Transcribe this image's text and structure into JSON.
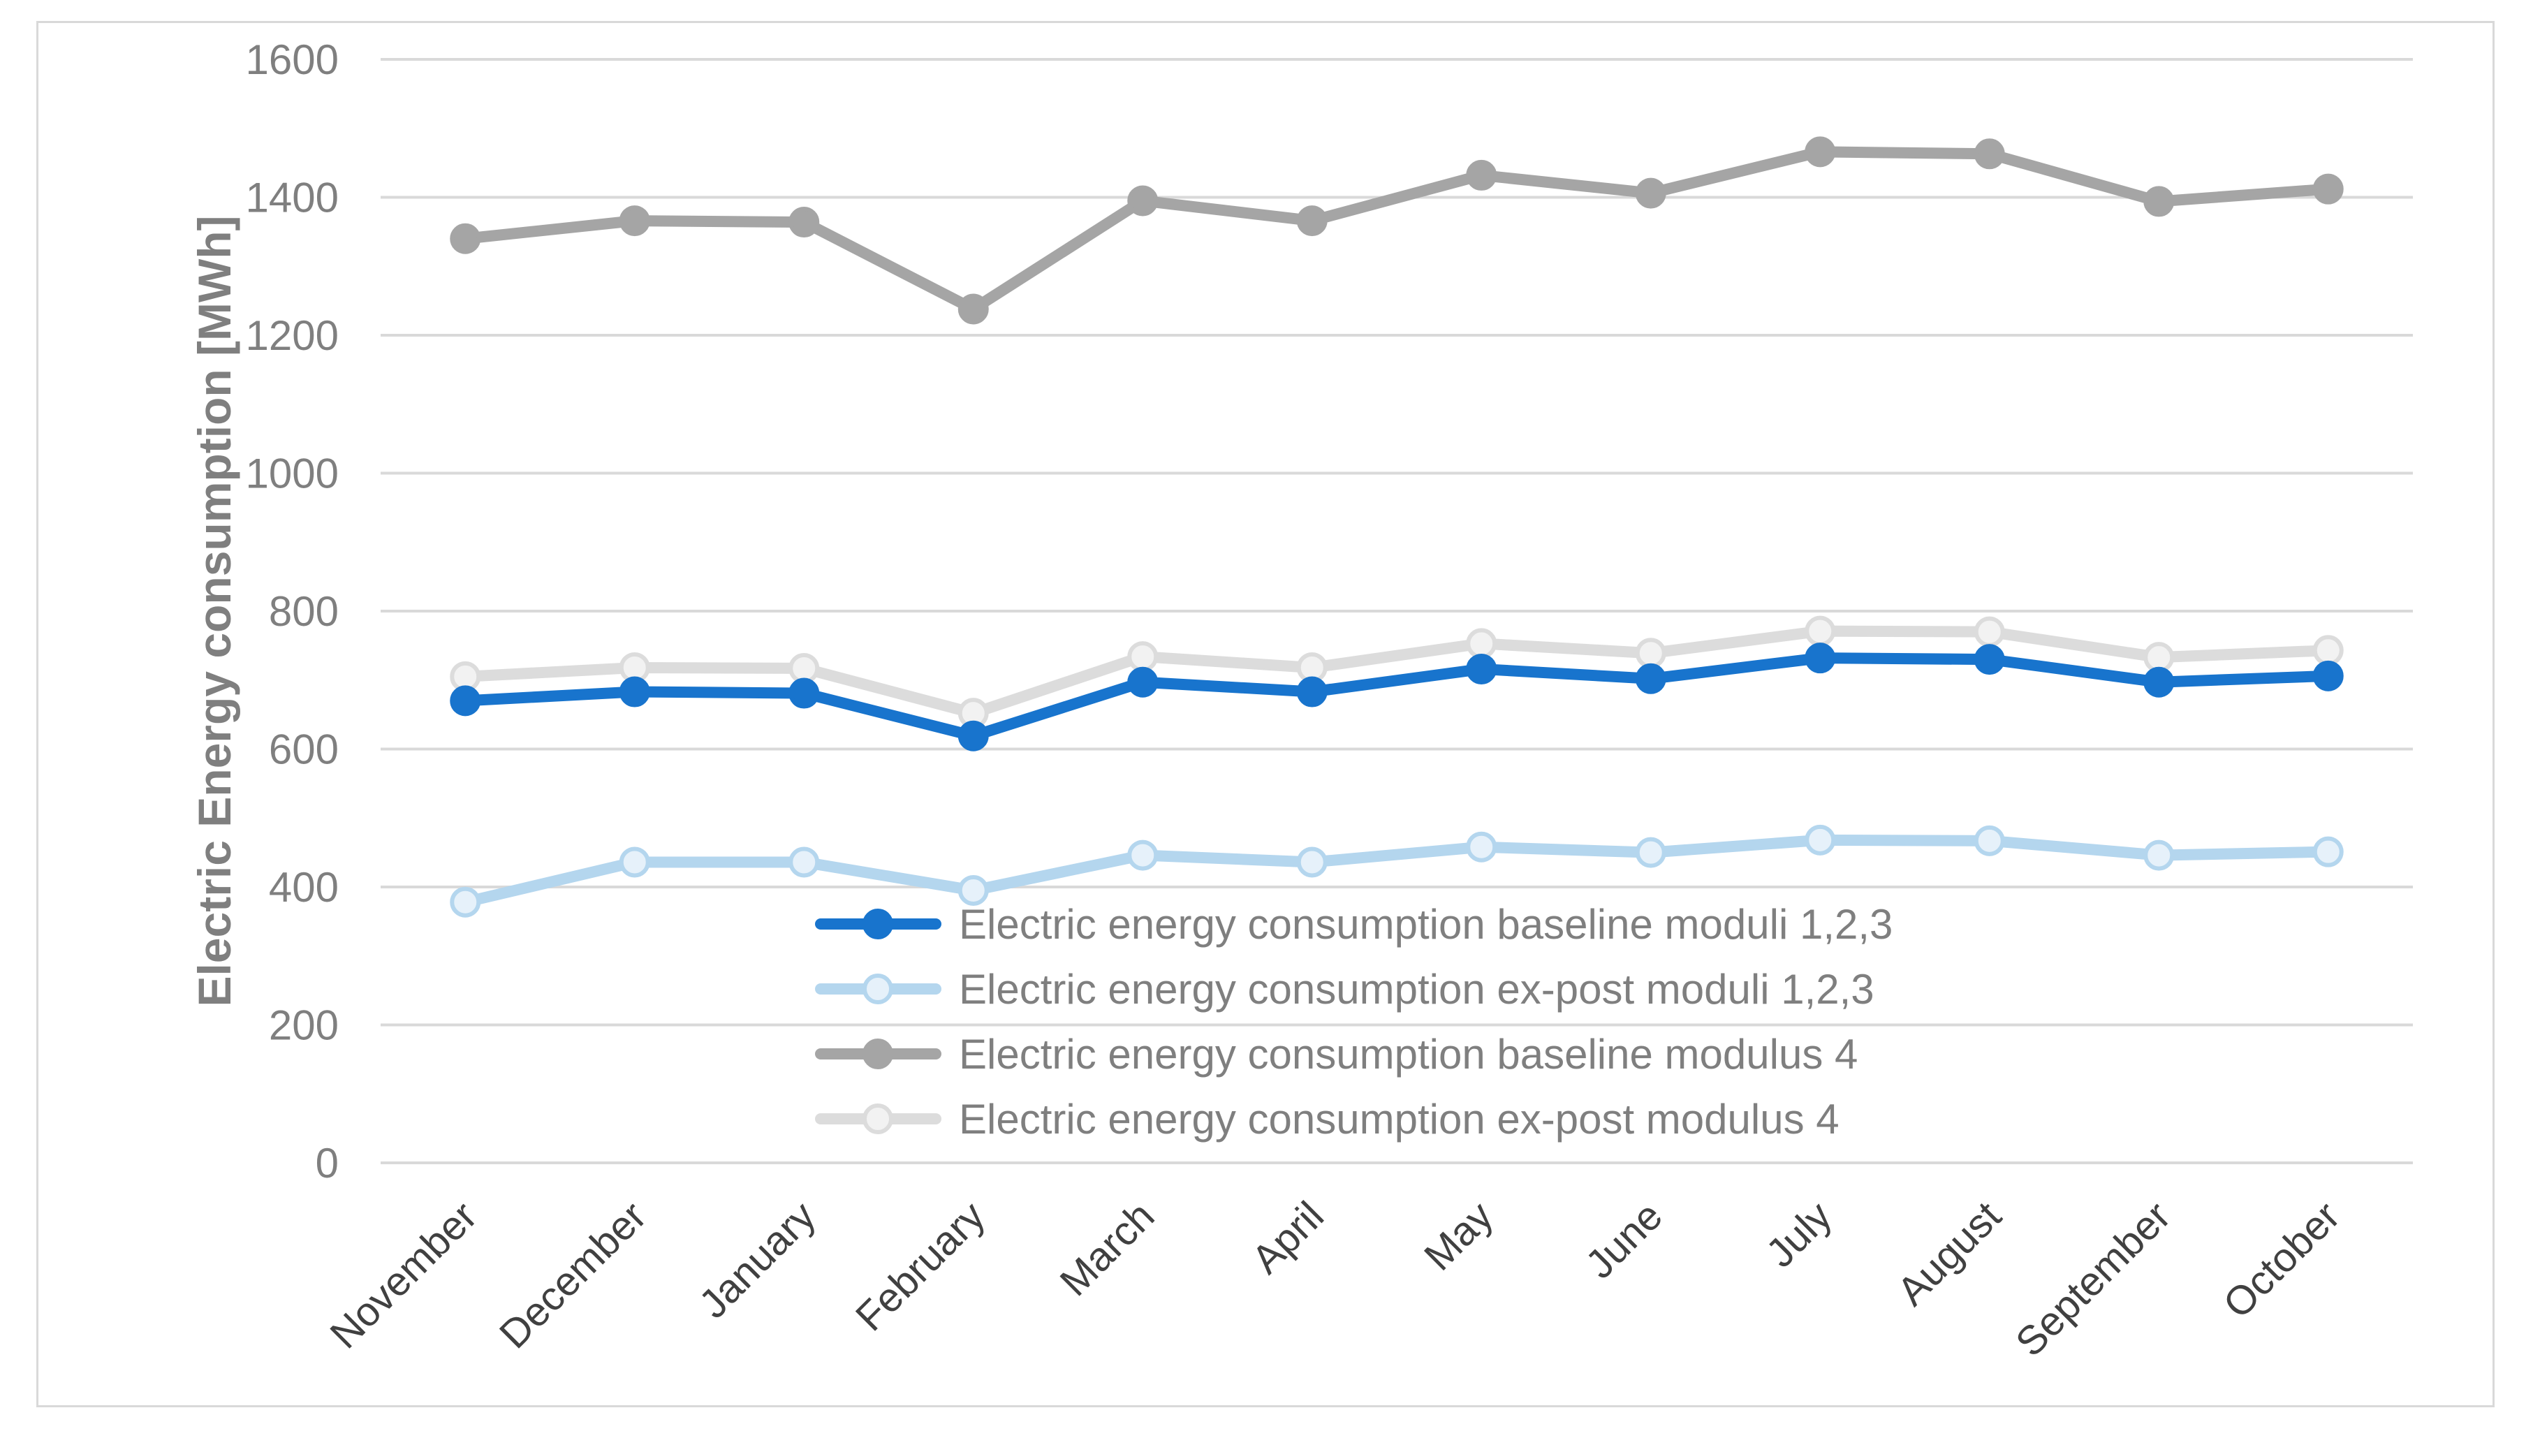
{
  "chart_data": {
    "type": "line",
    "title": "",
    "xlabel": "",
    "ylabel": "Electric Energy consumption [MWh]",
    "ylim": [
      0,
      1600
    ],
    "yticks": [
      0,
      200,
      400,
      600,
      800,
      1000,
      1200,
      1400,
      1600
    ],
    "grid": true,
    "legend_position": "lower-center",
    "categories": [
      "November",
      "December",
      "January",
      "February",
      "March",
      "April",
      "May",
      "June",
      "July",
      "August",
      "September",
      "October"
    ],
    "series": [
      {
        "name": "Electric energy consumption baseline moduli 1,2,3",
        "color": "#1874cd",
        "marker_fill": "#1874cd",
        "values": [
          670,
          683,
          681,
          619,
          697,
          683,
          716,
          702,
          732,
          730,
          697,
          706
        ]
      },
      {
        "name": "Electric energy consumption ex-post moduli 1,2,3",
        "color": "#b4d6ee",
        "marker_fill": "#e6f1fa",
        "values": [
          378,
          436,
          436,
          395,
          446,
          436,
          458,
          450,
          468,
          467,
          446,
          451
        ]
      },
      {
        "name": "Electric energy consumption baseline modulus 4",
        "color": "#a5a5a5",
        "marker_fill": "#a5a5a5",
        "values": [
          1340,
          1366,
          1364,
          1238,
          1395,
          1366,
          1432,
          1406,
          1466,
          1463,
          1394,
          1412
        ]
      },
      {
        "name": "Electric energy consumption ex-post modulus 4",
        "color": "#dcdcdc",
        "marker_fill": "#f2f2f2",
        "values": [
          705,
          718,
          717,
          652,
          734,
          718,
          753,
          739,
          771,
          770,
          733,
          743
        ]
      }
    ]
  }
}
